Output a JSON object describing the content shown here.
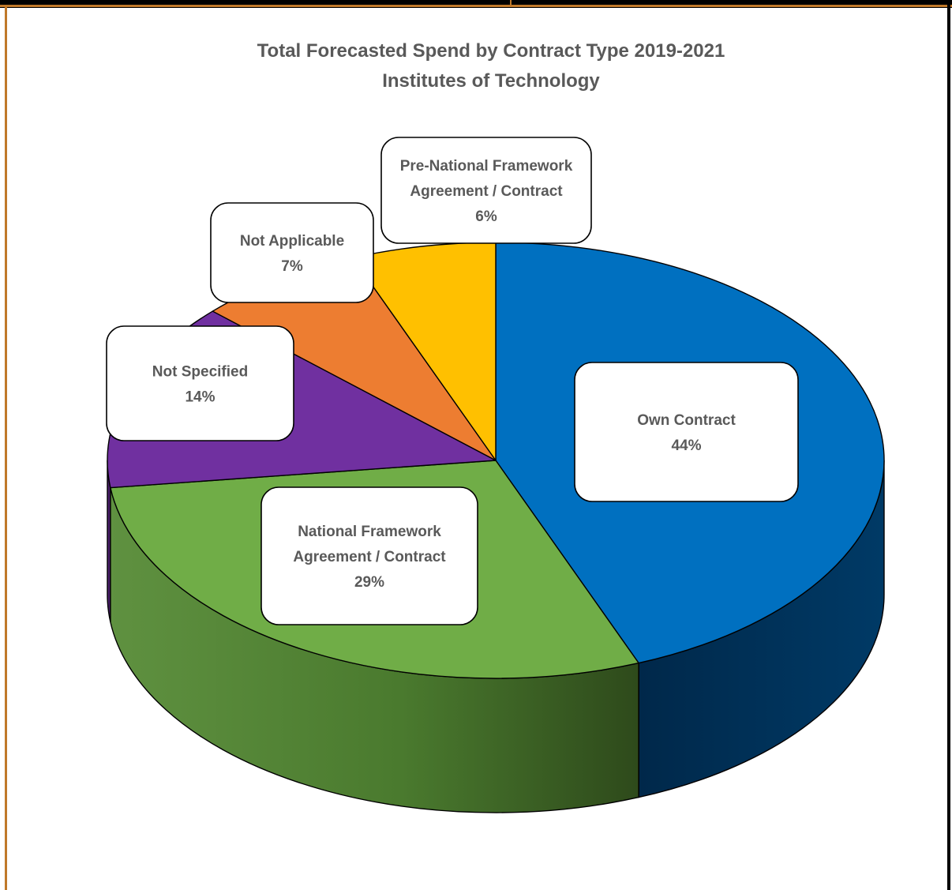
{
  "chart_data": {
    "type": "pie",
    "title": "Total Forecasted Spend by Contract Type 2019-2021",
    "subtitle": "Institutes of Technology",
    "slices": [
      {
        "label": "Own Contract",
        "label_lines": [
          "Own Contract"
        ],
        "percent_label": "44%",
        "value": 44,
        "color": "#0070c0",
        "side_color": "#002a4a"
      },
      {
        "label": "National Framework Agreement / Contract",
        "label_lines": [
          "National Framework",
          "Agreement / Contract"
        ],
        "percent_label": "29%",
        "value": 29,
        "color": "#70ad47",
        "side_color": "#4e7f31"
      },
      {
        "label": "Not Specified",
        "label_lines": [
          "Not Specified"
        ],
        "percent_label": "14%",
        "value": 14,
        "color": "#7030a0",
        "side_color": "#4a1f6b"
      },
      {
        "label": "Not Applicable",
        "label_lines": [
          "Not Applicable"
        ],
        "percent_label": "7%",
        "value": 7,
        "color": "#ed7d31",
        "side_color": "#a5561f"
      },
      {
        "label": "Pre-National Framework Agreement / Contract",
        "label_lines": [
          "Pre-National Framework",
          "Agreement / Contract"
        ],
        "percent_label": "6%",
        "value": 6,
        "color": "#ffc000",
        "side_color": "#b38600"
      }
    ]
  }
}
